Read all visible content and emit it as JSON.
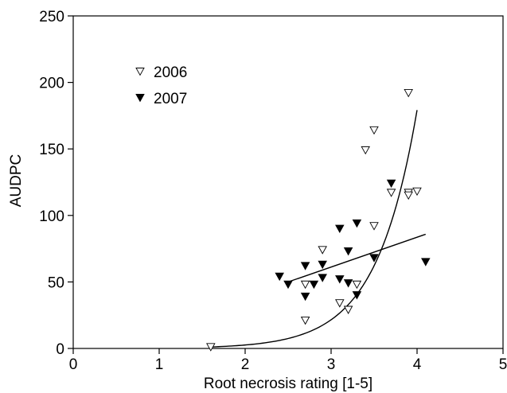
{
  "chart_data": {
    "type": "scatter",
    "title": "",
    "xlabel": "Root necrosis rating [1-5]",
    "ylabel": "AUDPC",
    "xlim": [
      0,
      5
    ],
    "ylim": [
      0,
      250
    ],
    "x_ticks": [
      0,
      1,
      2,
      3,
      4,
      5
    ],
    "y_ticks": [
      0,
      50,
      100,
      150,
      200,
      250
    ],
    "grid": false,
    "legend_position": "top-left",
    "series": [
      {
        "name": "2006",
        "marker": "open-down-triangle",
        "color": "#000000",
        "points": [
          [
            1.6,
            1
          ],
          [
            2.7,
            21
          ],
          [
            2.7,
            48
          ],
          [
            2.9,
            74
          ],
          [
            3.1,
            34
          ],
          [
            3.2,
            29
          ],
          [
            3.3,
            48
          ],
          [
            3.4,
            149
          ],
          [
            3.5,
            164
          ],
          [
            3.5,
            92
          ],
          [
            3.7,
            117
          ],
          [
            3.9,
            192
          ],
          [
            3.9,
            117
          ],
          [
            3.9,
            115
          ],
          [
            4.0,
            118
          ]
        ],
        "fit": {
          "type": "exponential",
          "a": 0.0375,
          "b": 2.118,
          "x_range": [
            1.6,
            4.0
          ]
        }
      },
      {
        "name": "2007",
        "marker": "filled-down-triangle",
        "color": "#000000",
        "points": [
          [
            2.4,
            54
          ],
          [
            2.5,
            48
          ],
          [
            2.7,
            62
          ],
          [
            2.7,
            39
          ],
          [
            2.8,
            48
          ],
          [
            2.9,
            63
          ],
          [
            2.9,
            53
          ],
          [
            3.1,
            90
          ],
          [
            3.1,
            52
          ],
          [
            3.2,
            73
          ],
          [
            3.2,
            49
          ],
          [
            3.3,
            94
          ],
          [
            3.3,
            40
          ],
          [
            3.5,
            68
          ],
          [
            3.7,
            124
          ],
          [
            4.1,
            65
          ]
        ],
        "fit": {
          "type": "linear",
          "slope": 22.4,
          "intercept": -6,
          "x_range": [
            2.5,
            4.1
          ]
        }
      }
    ]
  }
}
